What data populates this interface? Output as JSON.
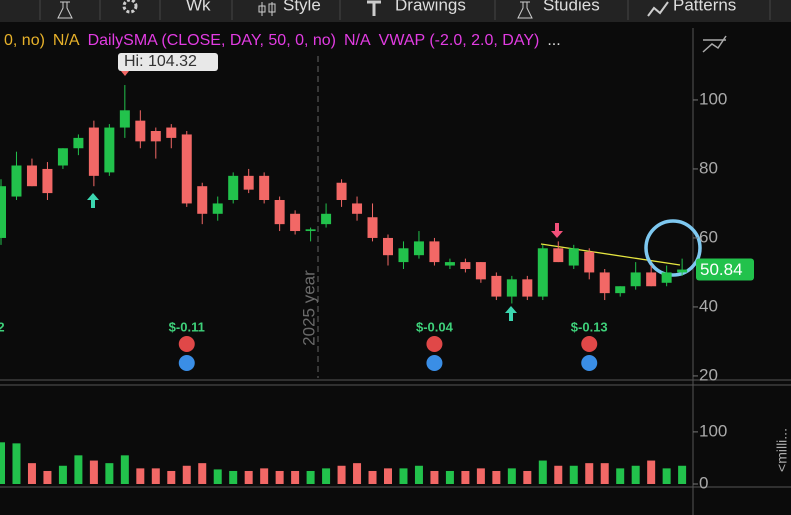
{
  "toolbar": {
    "buttons": [
      "Wk",
      "Style",
      "Drawings",
      "Studies",
      "Patterns"
    ]
  },
  "studies": [
    {
      "text": "0, no)",
      "color": "#e8b22a"
    },
    {
      "text": "N/A",
      "color": "#e8b22a"
    },
    {
      "text": "DailySMA (CLOSE, DAY, 50, 0, no)",
      "color": "#e23ce2"
    },
    {
      "text": "N/A",
      "color": "#e23ce2"
    },
    {
      "text": "VWAP (-2.0, 2.0, DAY)",
      "color": "#e23ce2"
    },
    {
      "text": "...",
      "color": "#dddddd"
    }
  ],
  "chart_data": {
    "type": "candlestick",
    "open": [
      60,
      72,
      81,
      80,
      81,
      86,
      92,
      79,
      92,
      94,
      91,
      92,
      90,
      75,
      67,
      71,
      78,
      78,
      71,
      67,
      62,
      64,
      76,
      70,
      66,
      60,
      53,
      55,
      59,
      52,
      53,
      53,
      49,
      43,
      48,
      43,
      57,
      52,
      56,
      50,
      44,
      46,
      50,
      47,
      50
    ],
    "high": [
      77,
      85,
      83,
      82,
      86,
      90,
      94,
      93,
      104.32,
      97,
      92,
      93,
      91,
      76,
      72,
      79,
      80,
      79,
      72,
      68,
      63,
      70,
      77,
      72,
      70,
      61,
      59,
      62,
      60,
      54,
      54,
      53,
      50,
      49,
      49,
      58,
      59,
      58,
      57,
      51,
      46,
      53,
      52,
      52,
      54
    ],
    "low": [
      58,
      71,
      75,
      71,
      80,
      84,
      75,
      78,
      89,
      86,
      83,
      86,
      69,
      64,
      65,
      70,
      73,
      70,
      62,
      61,
      59,
      63,
      69,
      65,
      59,
      52,
      51,
      54,
      52,
      51,
      50,
      47,
      42,
      41,
      42,
      42,
      53,
      51,
      48,
      42,
      43,
      45,
      46,
      46,
      49
    ],
    "close": [
      75,
      81,
      75,
      73,
      86,
      89,
      78,
      92,
      97,
      88,
      88,
      89,
      70,
      67,
      70,
      78,
      74,
      71,
      64,
      62,
      62.5,
      67,
      71,
      67,
      60,
      55,
      57,
      59,
      53,
      53,
      51,
      48,
      43,
      48,
      43,
      57,
      53,
      57,
      50,
      44,
      46,
      50,
      46,
      50,
      50.84
    ],
    "volume": [
      80,
      78,
      40,
      25,
      35,
      55,
      45,
      40,
      55,
      30,
      30,
      25,
      35,
      40,
      28,
      25,
      25,
      30,
      25,
      25,
      25,
      30,
      35,
      40,
      25,
      30,
      30,
      35,
      25,
      25,
      25,
      30,
      25,
      30,
      25,
      45,
      35,
      35,
      40,
      40,
      30,
      35,
      45,
      30,
      35
    ],
    "ylim": [
      19.4,
      113.9
    ],
    "yticks": [
      20,
      40,
      60,
      80,
      100
    ],
    "volume_ylim": [
      0,
      190
    ],
    "volume_yticks": [
      0,
      100
    ],
    "volume_label": "<milli...",
    "up_color": "#22c24c",
    "down_color": "#f26866",
    "grid": false,
    "high_label": "Hi: 104.32",
    "year_label": "2025 year",
    "dividends": [
      {
        "index": 0,
        "label": "2"
      },
      {
        "index": 12,
        "label": "$-0.11"
      },
      {
        "index": 28,
        "label": "$-0.04"
      },
      {
        "index": 38,
        "label": "$-0.13"
      }
    ]
  }
}
